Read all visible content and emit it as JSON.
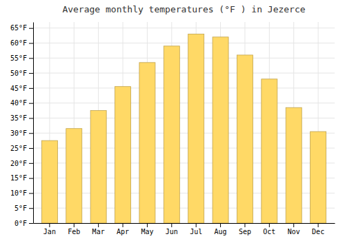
{
  "chart_data": {
    "type": "bar",
    "title": "Average monthly temperatures (°F ) in Jezerce",
    "categories": [
      "Jan",
      "Feb",
      "Mar",
      "Apr",
      "May",
      "Jun",
      "Jul",
      "Aug",
      "Sep",
      "Oct",
      "Nov",
      "Dec"
    ],
    "values": [
      27.5,
      31.5,
      37.5,
      45.5,
      53.5,
      59.0,
      63.0,
      62.0,
      56.0,
      48.0,
      38.5,
      30.5
    ],
    "color": "#FFD966",
    "ylim": [
      0,
      67
    ],
    "yticks": [
      {
        "value": 0,
        "label": "0°F"
      },
      {
        "value": 5,
        "label": "5°F"
      },
      {
        "value": 10,
        "label": "10°F"
      },
      {
        "value": 15,
        "label": "15°F"
      },
      {
        "value": 20,
        "label": "20°F"
      },
      {
        "value": 25,
        "label": "25°F"
      },
      {
        "value": 30,
        "label": "30°F"
      },
      {
        "value": 35,
        "label": "35°F"
      },
      {
        "value": 40,
        "label": "40°F"
      },
      {
        "value": 45,
        "label": "45°F"
      },
      {
        "value": 50,
        "label": "50°F"
      },
      {
        "value": 55,
        "label": "55°F"
      },
      {
        "value": 60,
        "label": "60°F"
      },
      {
        "value": 65,
        "label": "65°F"
      }
    ],
    "grid": true
  }
}
